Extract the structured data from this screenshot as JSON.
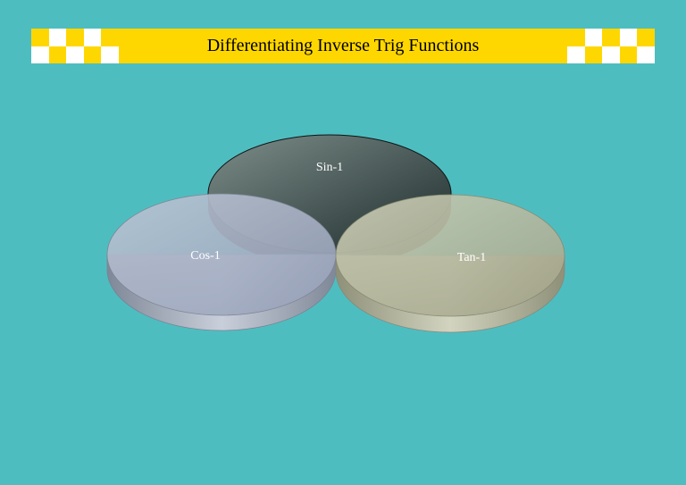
{
  "title": "Differentiating Inverse Trig Functions",
  "colors": {
    "background": "#4EBDC0",
    "banner": "#FFD700",
    "checker_light": "#FFFFFF"
  },
  "circles": [
    {
      "label": "Sin-1",
      "fill_from": "#7E8E8A",
      "fill_to": "#1C2B2B",
      "rim": "#2A3838",
      "outline": "#111111"
    },
    {
      "label": "Cos-1",
      "fill_from": "#B9C2D1",
      "fill_to": "#98A2BA",
      "rim": "#8C95A8",
      "outline": "#7E8696"
    },
    {
      "label": "Tan-1",
      "fill_from": "#C7CAB2",
      "fill_to": "#A6A78C",
      "rim": "#9A9C82",
      "outline": "#888A72"
    }
  ]
}
